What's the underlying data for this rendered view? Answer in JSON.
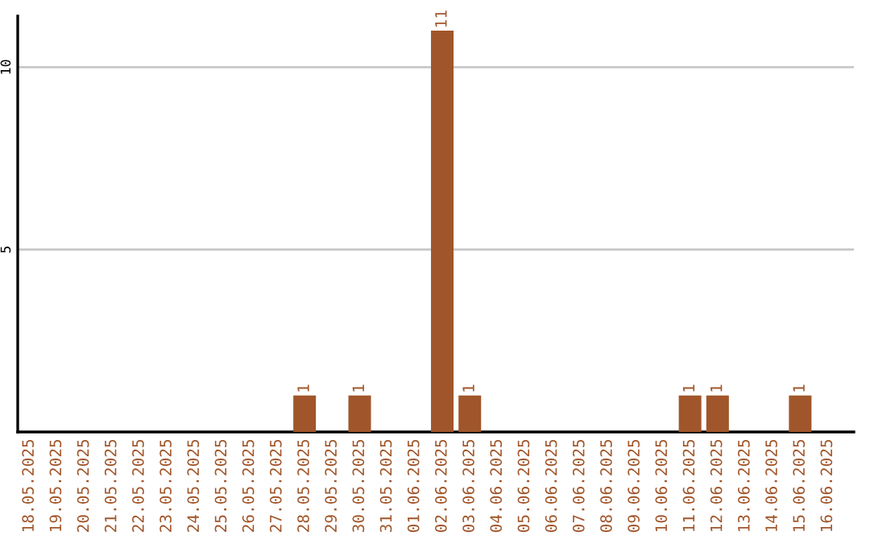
{
  "chart_data": {
    "type": "bar",
    "categories": [
      "18.05.2025",
      "19.05.2025",
      "20.05.2025",
      "21.05.2025",
      "22.05.2025",
      "23.05.2025",
      "24.05.2025",
      "25.05.2025",
      "26.05.2025",
      "27.05.2025",
      "28.05.2025",
      "29.05.2025",
      "30.05.2025",
      "31.05.2025",
      "01.06.2025",
      "02.06.2025",
      "03.06.2025",
      "04.06.2025",
      "05.06.2025",
      "06.06.2025",
      "07.06.2025",
      "08.06.2025",
      "09.06.2025",
      "10.06.2025",
      "11.06.2025",
      "12.06.2025",
      "13.06.2025",
      "14.06.2025",
      "15.06.2025",
      "16.06.2025"
    ],
    "values": [
      0,
      0,
      0,
      0,
      0,
      0,
      0,
      0,
      0,
      0,
      1,
      0,
      1,
      0,
      0,
      11,
      1,
      0,
      0,
      0,
      0,
      0,
      0,
      0,
      1,
      1,
      0,
      0,
      1,
      0
    ],
    "value_labels": [
      null,
      null,
      null,
      null,
      null,
      null,
      null,
      null,
      null,
      null,
      "1",
      null,
      "1",
      null,
      null,
      "11",
      "1",
      null,
      null,
      null,
      null,
      null,
      null,
      null,
      "1",
      "1",
      null,
      null,
      "1",
      null
    ],
    "color": "#a0562a",
    "ylim": [
      0,
      11.4
    ],
    "yticks": [
      5,
      10
    ],
    "grid": "y"
  }
}
